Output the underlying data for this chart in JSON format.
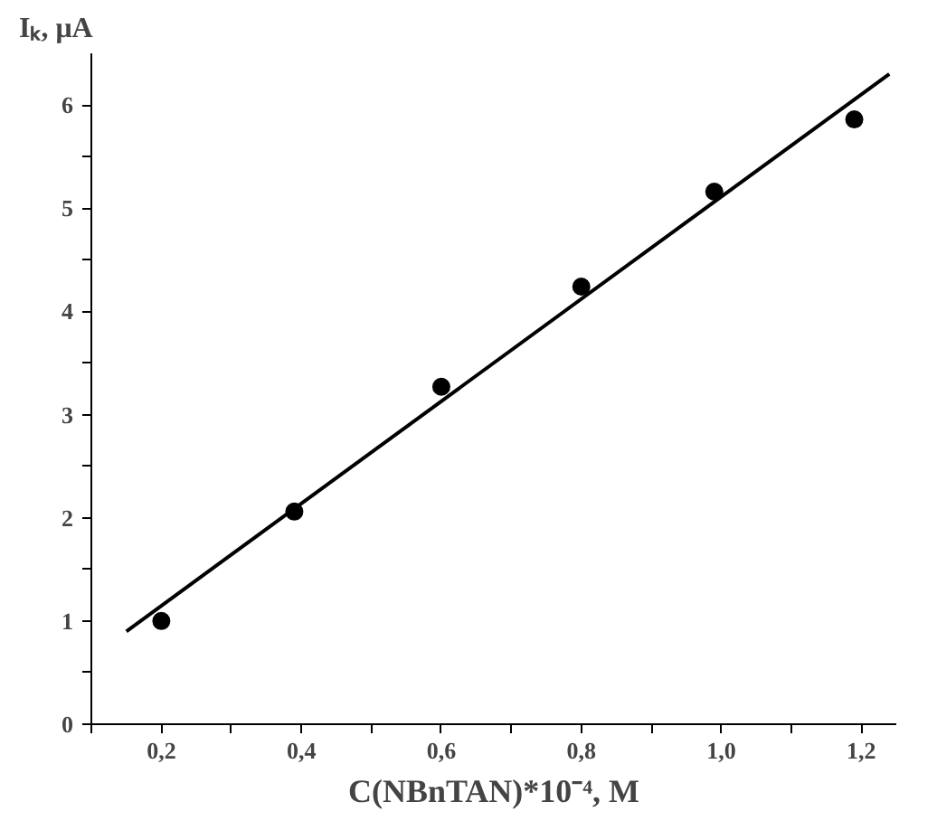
{
  "chart_data": {
    "type": "scatter",
    "xlabel": "C(NBnTAN)*10⁻⁴, M",
    "ylabel": "Iₖ, μA",
    "series": [
      {
        "color": "#000000",
        "marker": "circle",
        "x": [
          0.2,
          0.39,
          0.6,
          0.8,
          0.99,
          1.19
        ],
        "values": [
          1.0,
          2.06,
          3.27,
          4.24,
          5.16,
          5.86
        ]
      },
      {
        "type": "line",
        "color": "#000000",
        "line_style": "solid",
        "x": [
          0.15,
          1.24
        ],
        "values": [
          0.9,
          6.3
        ]
      }
    ],
    "xlim": [
      0.1,
      1.25
    ],
    "ylim": [
      0,
      6.5
    ],
    "xticks": [
      {
        "value": 0.1,
        "label": null
      },
      {
        "value": 0.2,
        "label": "0,2"
      },
      {
        "value": 0.3,
        "label": null
      },
      {
        "value": 0.4,
        "label": "0,4"
      },
      {
        "value": 0.5,
        "label": null
      },
      {
        "value": 0.6,
        "label": "0,6"
      },
      {
        "value": 0.7,
        "label": null
      },
      {
        "value": 0.8,
        "label": "0,8"
      },
      {
        "value": 0.9,
        "label": null
      },
      {
        "value": 1.0,
        "label": "1,0"
      },
      {
        "value": 1.1,
        "label": null
      },
      {
        "value": 1.2,
        "label": "1,2"
      }
    ],
    "yticks": [
      0,
      {
        "value": 0.5,
        "label": null
      },
      1,
      {
        "value": 1.5,
        "label": null
      },
      2,
      {
        "value": 2.5,
        "label": null
      },
      3,
      {
        "value": 3.5,
        "label": null
      },
      4,
      {
        "value": 4.5,
        "label": null
      },
      5,
      {
        "value": 5.5,
        "label": null
      },
      6
    ],
    "grid": false
  }
}
